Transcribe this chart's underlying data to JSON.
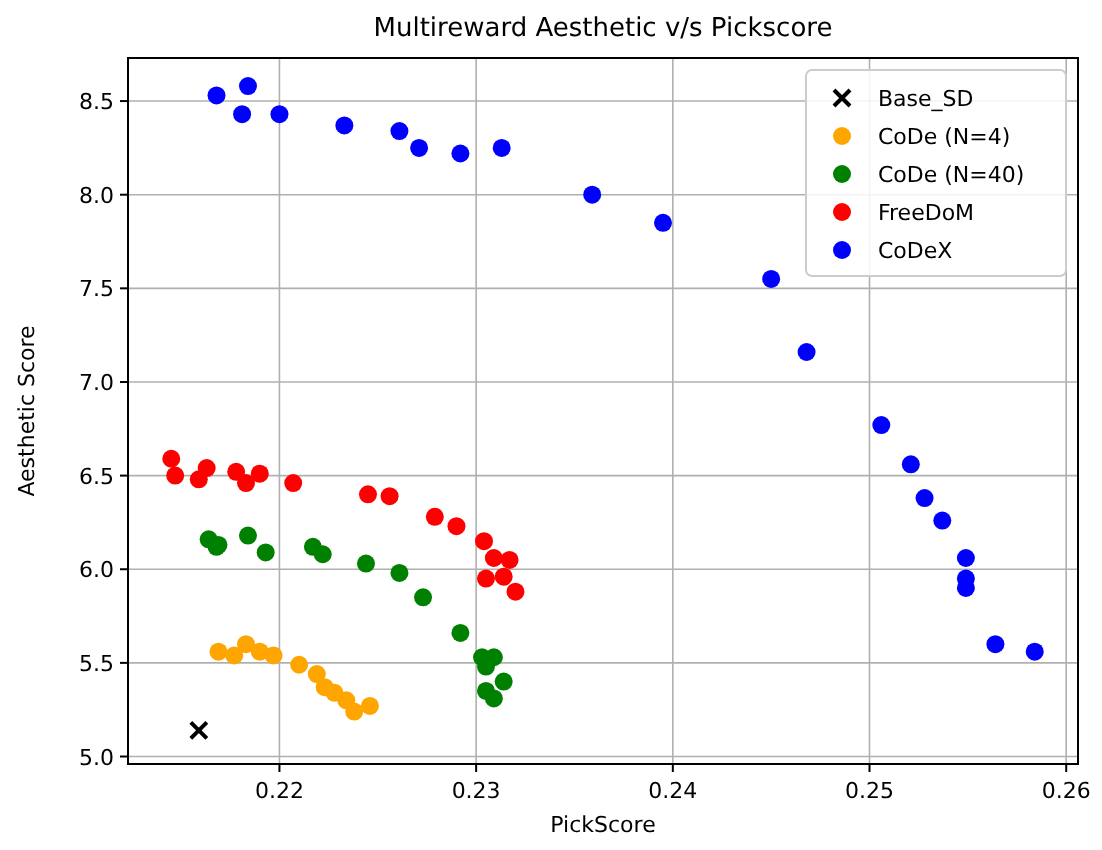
{
  "chart_data": {
    "type": "scatter",
    "title": "Multireward Aesthetic v/s Pickscore",
    "xlabel": "PickScore",
    "ylabel": "Aesthetic Score",
    "xlim": [
      0.2123,
      0.2606
    ],
    "ylim": [
      4.96,
      8.73
    ],
    "xticks": [
      0.22,
      0.23,
      0.24,
      0.25,
      0.26
    ],
    "yticks": [
      {
        "value": 5,
        "label": "5.0"
      },
      {
        "value": 5.5,
        "label": "5.5"
      },
      {
        "value": 6,
        "label": "6.0"
      },
      {
        "value": 6.5,
        "label": "6.5"
      },
      {
        "value": 7,
        "label": "7.0"
      },
      {
        "value": 7.5,
        "label": "7.5"
      },
      {
        "value": 8,
        "label": "8.0"
      },
      {
        "value": 8.5,
        "label": "8.5"
      }
    ],
    "grid": true,
    "legend": "top right",
    "marker": "circle",
    "series": [
      {
        "name": "Base_SD",
        "color": "#000000",
        "marker": "cross",
        "x": [
          0.2159
        ],
        "values": [
          5.14
        ]
      },
      {
        "name": "CoDe (N=4)",
        "color": "#ffa500",
        "x": [
          0.2169,
          0.2177,
          0.2183,
          0.219,
          0.2197,
          0.221,
          0.2219,
          0.2223,
          0.2228,
          0.2234,
          0.2246,
          0.2238
        ],
        "values": [
          5.56,
          5.54,
          5.6,
          5.56,
          5.54,
          5.49,
          5.44,
          5.37,
          5.34,
          5.3,
          5.27,
          5.24
        ]
      },
      {
        "name": "CoDe (N=40)",
        "color": "#008000",
        "x": [
          0.2164,
          0.2169,
          0.2168,
          0.2184,
          0.2193,
          0.2217,
          0.2222,
          0.2244,
          0.2261,
          0.2273,
          0.2292,
          0.2303,
          0.2309,
          0.2305,
          0.2314,
          0.2305,
          0.2309
        ],
        "values": [
          6.16,
          6.13,
          6.12,
          6.18,
          6.09,
          6.12,
          6.08,
          6.03,
          5.98,
          5.85,
          5.66,
          5.53,
          5.53,
          5.48,
          5.4,
          5.35,
          5.31
        ]
      },
      {
        "name": "FreeDoM",
        "color": "#ff0000",
        "x": [
          0.2145,
          0.2147,
          0.2159,
          0.2163,
          0.2178,
          0.2183,
          0.219,
          0.2207,
          0.2245,
          0.2256,
          0.2279,
          0.229,
          0.2304,
          0.2309,
          0.2317,
          0.2305,
          0.2314,
          0.232
        ],
        "values": [
          6.59,
          6.5,
          6.48,
          6.54,
          6.52,
          6.46,
          6.51,
          6.46,
          6.4,
          6.39,
          6.28,
          6.23,
          6.15,
          6.06,
          6.05,
          5.95,
          5.96,
          5.88
        ]
      },
      {
        "name": "CoDeX",
        "color": "#0000ff",
        "x": [
          0.2168,
          0.2184,
          0.2181,
          0.22,
          0.2233,
          0.2261,
          0.2271,
          0.2292,
          0.2313,
          0.2359,
          0.2395,
          0.245,
          0.2468,
          0.2506,
          0.2521,
          0.2528,
          0.2537,
          0.2549,
          0.2549,
          0.2549,
          0.2564,
          0.2584
        ],
        "values": [
          8.53,
          8.58,
          8.43,
          8.43,
          8.37,
          8.34,
          8.25,
          8.22,
          8.25,
          8.0,
          7.85,
          7.55,
          7.16,
          6.77,
          6.56,
          6.38,
          6.26,
          6.06,
          5.95,
          5.9,
          5.6,
          5.56
        ]
      }
    ]
  }
}
